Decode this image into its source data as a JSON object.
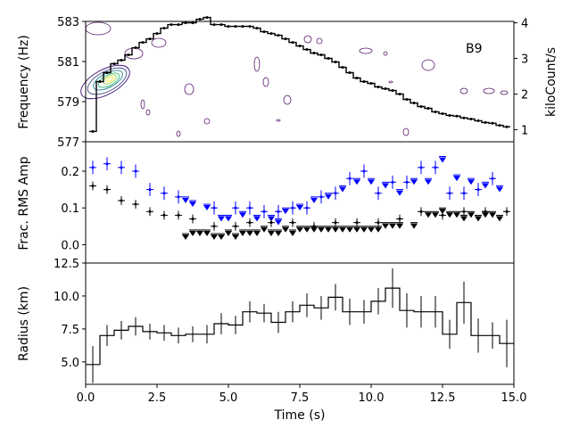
{
  "chart_data": [
    {
      "type": "line",
      "panel": "top",
      "annotation": "B9",
      "ylabel": "Frequency (Hz)",
      "ylim": [
        577,
        583
      ],
      "yticks": [
        577,
        579,
        581,
        583
      ],
      "y2label": "kiloCount/s",
      "y2lim": [
        0.66,
        4.04
      ],
      "y2ticks": [
        1,
        2,
        3,
        4
      ],
      "xlim": [
        0,
        15
      ],
      "series": [
        {
          "name": "count rate",
          "axis": "right",
          "x": [
            0.25,
            0.5,
            0.75,
            1.0,
            1.25,
            1.5,
            1.75,
            2.0,
            2.25,
            2.5,
            2.75,
            3.0,
            3.25,
            3.5,
            3.75,
            4.0,
            4.25,
            4.5,
            4.75,
            5.0,
            5.25,
            5.5,
            5.75,
            6.0,
            6.25,
            6.5,
            6.75,
            7.0,
            7.25,
            7.5,
            7.75,
            8.0,
            8.25,
            8.5,
            8.75,
            9.0,
            9.25,
            9.5,
            9.75,
            10.0,
            10.25,
            10.5,
            10.75,
            11.0,
            11.25,
            11.5,
            11.75,
            12.0,
            12.25,
            12.5,
            12.75,
            13.0,
            13.25,
            13.5,
            13.75,
            14.0,
            14.25,
            14.5,
            14.75
          ],
          "y": [
            0.95,
            2.35,
            2.6,
            2.85,
            2.95,
            3.1,
            3.3,
            3.45,
            3.55,
            3.7,
            3.85,
            3.95,
            3.95,
            4.0,
            4.0,
            4.1,
            4.15,
            3.95,
            3.95,
            3.9,
            3.9,
            3.9,
            3.9,
            3.85,
            3.75,
            3.7,
            3.65,
            3.55,
            3.45,
            3.35,
            3.25,
            3.15,
            3.1,
            3.0,
            2.9,
            2.75,
            2.6,
            2.45,
            2.35,
            2.3,
            2.2,
            2.15,
            2.1,
            2.0,
            1.85,
            1.75,
            1.65,
            1.6,
            1.5,
            1.45,
            1.4,
            1.38,
            1.33,
            1.3,
            1.25,
            1.2,
            1.18,
            1.12,
            1.08
          ]
        }
      ]
    },
    {
      "type": "scatter",
      "panel": "middle",
      "ylabel": "Frac. RMS Amp",
      "ylim": [
        -0.05,
        0.28
      ],
      "yticks": [
        "0.0",
        "0.1",
        "0.2"
      ],
      "xlim": [
        0,
        15
      ],
      "series": [
        {
          "name": "blue measurements",
          "color": "#0000ff",
          "x": [
            0.25,
            0.75,
            1.25,
            1.75,
            2.25,
            2.75,
            3.25,
            4.5,
            5.25,
            5.75,
            6.25,
            6.75,
            7.25,
            7.75,
            8.25,
            8.75,
            9.25,
            9.75,
            10.25,
            10.75,
            11.25,
            11.75,
            12.25,
            12.75,
            13.25,
            13.75,
            14.25
          ],
          "y": [
            0.21,
            0.22,
            0.21,
            0.2,
            0.15,
            0.14,
            0.13,
            0.1,
            0.1,
            0.1,
            0.09,
            0.09,
            0.1,
            0.1,
            0.13,
            0.14,
            0.18,
            0.2,
            0.14,
            0.17,
            0.17,
            0.21,
            0.21,
            0.14,
            0.14,
            0.15,
            0.18
          ]
        },
        {
          "name": "blue upper limits",
          "color": "#0000ff",
          "x": [
            3.5,
            3.75,
            4.25,
            4.75,
            5.0,
            5.5,
            6.0,
            6.5,
            6.75,
            7.0,
            7.5,
            8.0,
            8.5,
            9.0,
            9.5,
            10.0,
            10.5,
            11.0,
            11.5,
            12.0,
            12.5,
            13.0,
            13.5,
            14.0,
            14.5
          ],
          "y": [
            0.13,
            0.12,
            0.11,
            0.08,
            0.08,
            0.09,
            0.08,
            0.08,
            0.07,
            0.1,
            0.11,
            0.13,
            0.14,
            0.16,
            0.18,
            0.18,
            0.17,
            0.15,
            0.18,
            0.18,
            0.24,
            0.19,
            0.18,
            0.17,
            0.16
          ]
        },
        {
          "name": "black measurements",
          "color": "#000000",
          "x": [
            0.25,
            0.75,
            1.25,
            1.75,
            2.25,
            2.75,
            3.25,
            3.75,
            4.5,
            5.25,
            5.75,
            6.5,
            7.25,
            8.0,
            8.75,
            9.5,
            10.25,
            11.0,
            11.75,
            12.5,
            13.25,
            14.0,
            14.75
          ],
          "y": [
            0.16,
            0.15,
            0.12,
            0.11,
            0.09,
            0.08,
            0.08,
            0.07,
            0.05,
            0.05,
            0.06,
            0.06,
            0.06,
            0.05,
            0.06,
            0.06,
            0.06,
            0.07,
            0.09,
            0.08,
            0.09,
            0.09,
            0.09
          ]
        },
        {
          "name": "black upper limits",
          "color": "#000000",
          "x": [
            3.5,
            3.75,
            4.0,
            4.25,
            4.5,
            4.75,
            5.0,
            5.25,
            5.5,
            5.75,
            6.0,
            6.25,
            6.5,
            6.75,
            7.0,
            7.25,
            7.5,
            7.75,
            8.0,
            8.25,
            8.5,
            8.75,
            9.0,
            9.25,
            9.5,
            9.75,
            10.0,
            10.25,
            10.5,
            10.75,
            11.0,
            11.5,
            12.0,
            12.25,
            12.5,
            12.75,
            13.0,
            13.25,
            13.5,
            13.75,
            14.0,
            14.25,
            14.5
          ],
          "y": [
            0.03,
            0.04,
            0.04,
            0.04,
            0.03,
            0.03,
            0.04,
            0.03,
            0.04,
            0.04,
            0.04,
            0.05,
            0.04,
            0.04,
            0.05,
            0.04,
            0.05,
            0.05,
            0.05,
            0.05,
            0.05,
            0.05,
            0.05,
            0.05,
            0.05,
            0.05,
            0.05,
            0.05,
            0.06,
            0.06,
            0.06,
            0.06,
            0.09,
            0.09,
            0.1,
            0.09,
            0.09,
            0.08,
            0.09,
            0.08,
            0.09,
            0.09,
            0.08
          ]
        }
      ]
    },
    {
      "type": "line",
      "panel": "bottom",
      "ylabel": "Radius (km)",
      "xlabel": "Time (s)",
      "ylim": [
        3.3,
        12.5
      ],
      "yticks": [
        "5.0",
        "7.5",
        "10.0",
        "12.5"
      ],
      "xlim": [
        0,
        15
      ],
      "xticks": [
        "0.0",
        "2.5",
        "5.0",
        "7.5",
        "10.0",
        "12.5",
        "15.0"
      ],
      "series": [
        {
          "name": "radius",
          "x": [
            0.25,
            0.75,
            1.25,
            1.75,
            2.25,
            2.75,
            3.25,
            3.75,
            4.25,
            4.75,
            5.25,
            5.75,
            6.25,
            6.75,
            7.25,
            7.75,
            8.25,
            8.75,
            9.25,
            9.75,
            10.25,
            10.75,
            11.25,
            11.75,
            12.25,
            12.75,
            13.25,
            13.75,
            14.25,
            14.75
          ],
          "y": [
            4.8,
            7.0,
            7.4,
            7.7,
            7.3,
            7.2,
            7.0,
            7.1,
            7.1,
            7.9,
            7.8,
            8.8,
            8.7,
            8.0,
            8.8,
            9.3,
            9.1,
            9.9,
            8.8,
            8.8,
            9.6,
            10.6,
            8.9,
            8.8,
            8.8,
            7.1,
            9.5,
            7.0,
            7.0,
            6.4
          ],
          "yerr": [
            1.4,
            0.8,
            0.7,
            0.7,
            0.6,
            0.6,
            0.6,
            0.6,
            0.7,
            0.8,
            0.7,
            0.8,
            0.7,
            0.8,
            0.8,
            0.9,
            0.9,
            1.0,
            1.0,
            0.9,
            1.0,
            1.5,
            1.3,
            1.2,
            1.2,
            1.1,
            1.6,
            1.3,
            1.0,
            1.8
          ]
        }
      ]
    }
  ]
}
